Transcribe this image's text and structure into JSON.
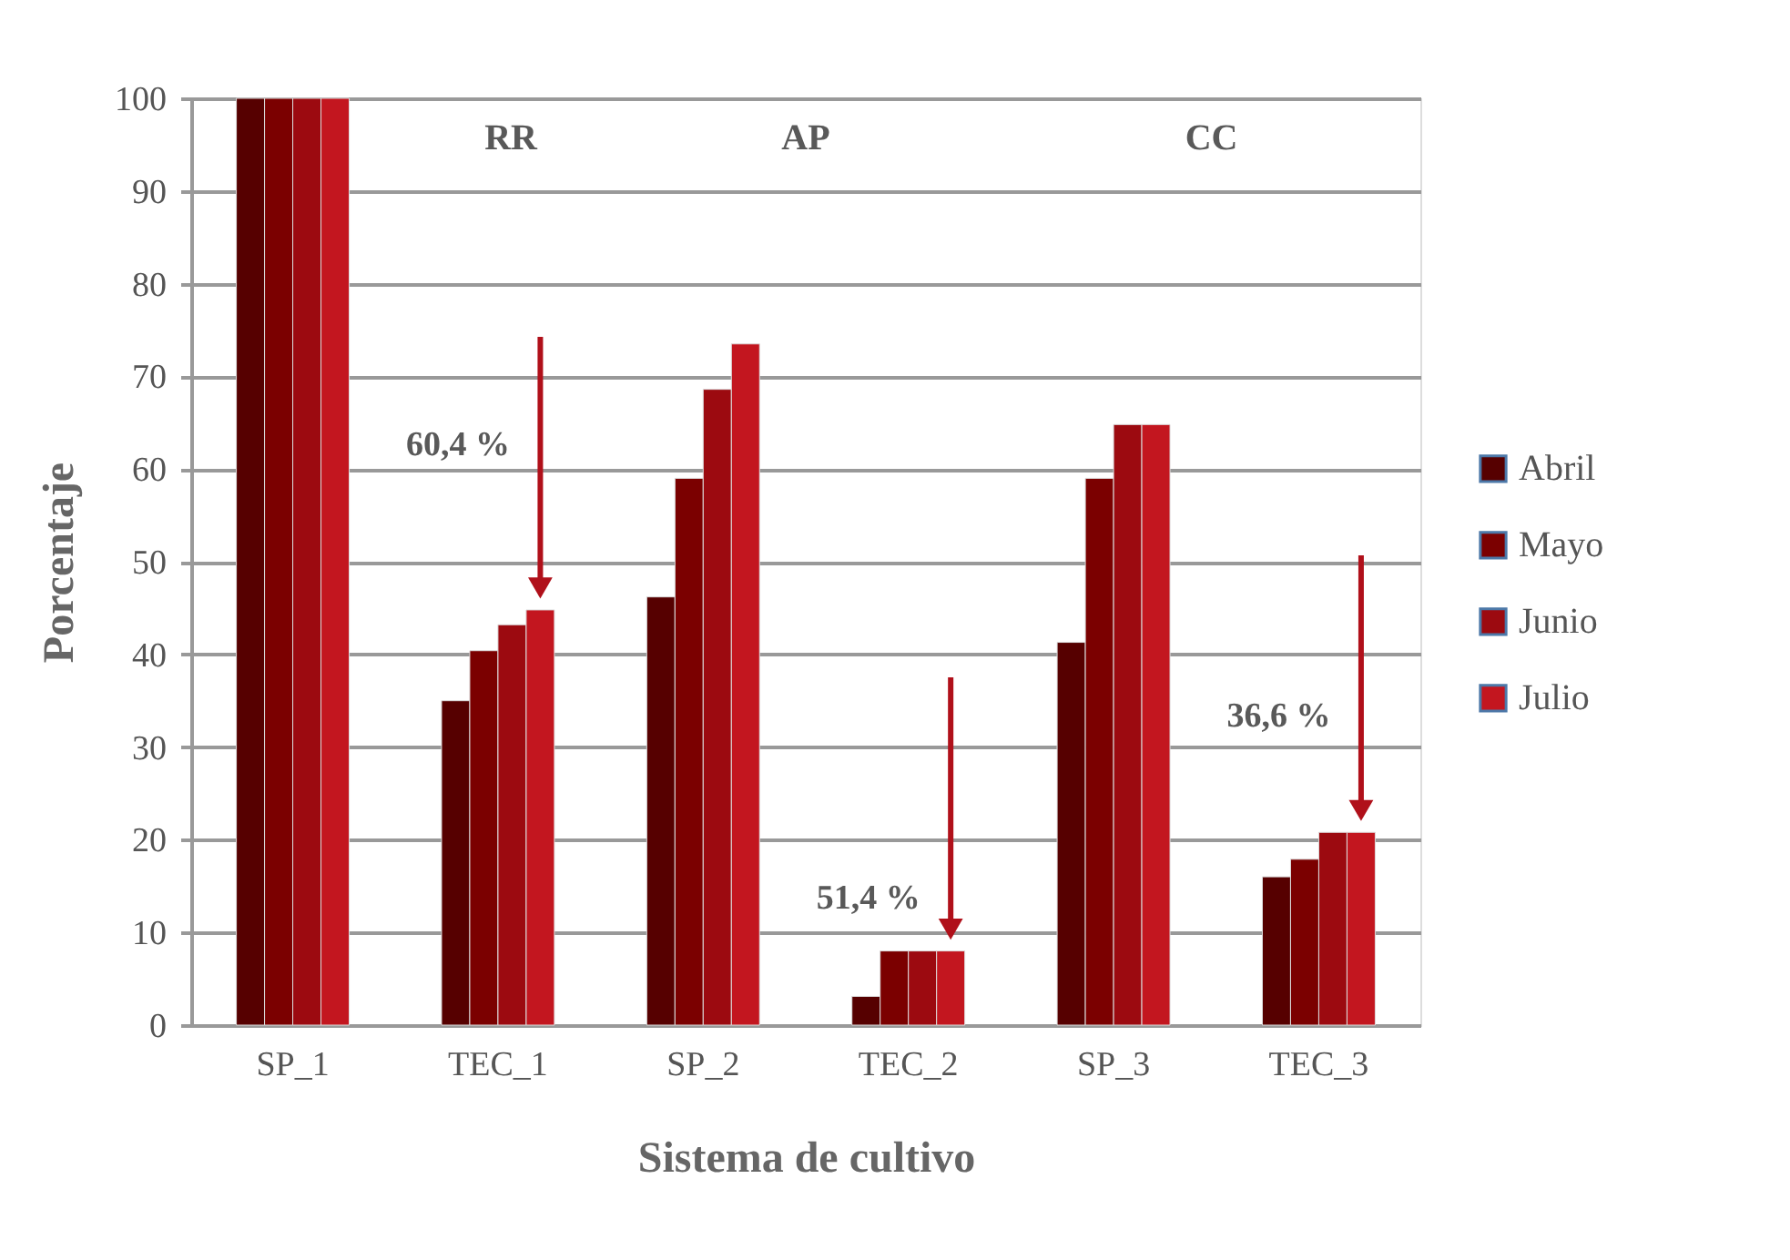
{
  "chart_data": {
    "type": "bar",
    "xlabel": "Sistema de cultivo",
    "ylabel": "Porcentaje",
    "categories": [
      "SP_1",
      "TEC_1",
      "SP_2",
      "TEC_2",
      "SP_3",
      "TEC_3"
    ],
    "series": [
      {
        "name": "Abril",
        "color": "#560000",
        "values": [
          100,
          35,
          46.2,
          3.1,
          41.3,
          16
        ]
      },
      {
        "name": "Mayo",
        "color": "#7b0000",
        "values": [
          100,
          40.4,
          59,
          8,
          59,
          17.9
        ]
      },
      {
        "name": "Junio",
        "color": "#9c0a10",
        "values": [
          100,
          43.2,
          68.6,
          8,
          64.8,
          20.8
        ]
      },
      {
        "name": "Julio",
        "color": "#c3161f",
        "values": [
          100,
          44.8,
          73.5,
          8,
          64.8,
          20.8
        ]
      }
    ],
    "ylim": [
      0,
      100
    ],
    "yticks": [
      0,
      10,
      20,
      30,
      40,
      50,
      60,
      70,
      80,
      90,
      100
    ],
    "grid": "y",
    "legend": "right",
    "annotations": [
      "RR",
      "AP",
      "CC",
      "60,4 %",
      "51,4 %",
      "36,6 %"
    ]
  }
}
